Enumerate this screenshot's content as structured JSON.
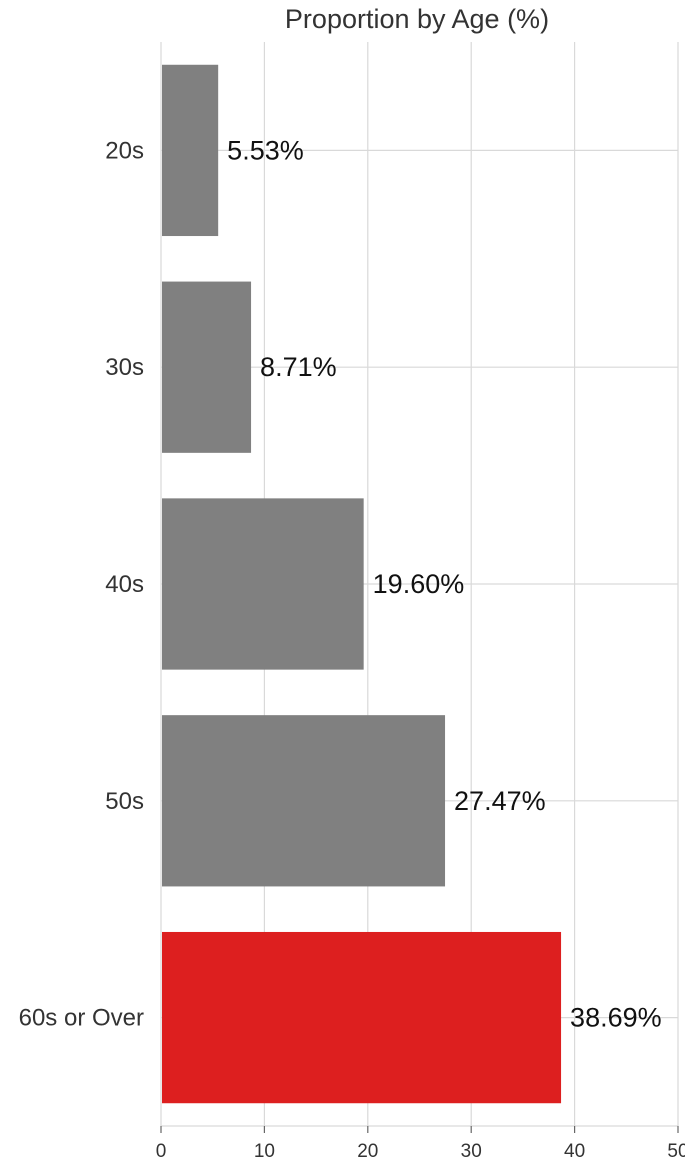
{
  "chart_data": {
    "type": "bar",
    "orientation": "horizontal",
    "title": "Proportion by Age (%)",
    "xlabel": "",
    "ylabel": "",
    "categories": [
      "20s",
      "30s",
      "40s",
      "50s",
      "60s or Over"
    ],
    "values": [
      5.53,
      8.71,
      19.6,
      27.47,
      38.69
    ],
    "data_labels": [
      "5.53%",
      "8.71%",
      "19.60%",
      "27.47%",
      "38.69%"
    ],
    "xlim": [
      0,
      50
    ],
    "xticks": [
      0,
      10,
      20,
      30,
      40,
      50
    ],
    "grid": true,
    "colors": {
      "default": "#808080",
      "highlight": "#dd1f1f",
      "highlight_category": "60s or Over"
    }
  }
}
